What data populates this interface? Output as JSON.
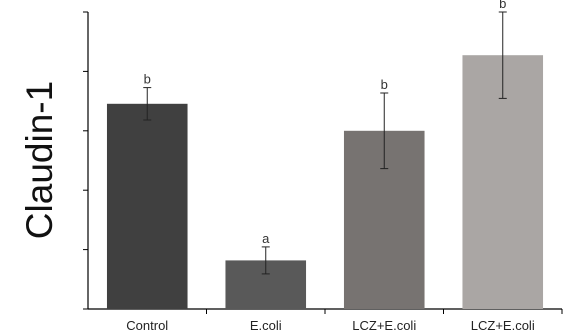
{
  "chart_data": {
    "type": "bar",
    "ylabel": "Claudin-1",
    "categories": [
      "Control",
      "E.coli",
      "LCZ+E.coli",
      "LCZ+E.coli"
    ],
    "values": [
      3.8,
      0.9,
      3.3,
      4.7
    ],
    "error_low": [
      0.3,
      0.25,
      0.7,
      0.8
    ],
    "error_high": [
      0.3,
      0.25,
      0.7,
      0.8
    ],
    "significance": [
      "b",
      "a",
      "b",
      "b"
    ],
    "colors": [
      "#404040",
      "#595959",
      "#777371",
      "#aaa6a4"
    ],
    "ylim": [
      0,
      5.5
    ],
    "y_tick_count": 6,
    "grid": false,
    "legend": "none"
  }
}
